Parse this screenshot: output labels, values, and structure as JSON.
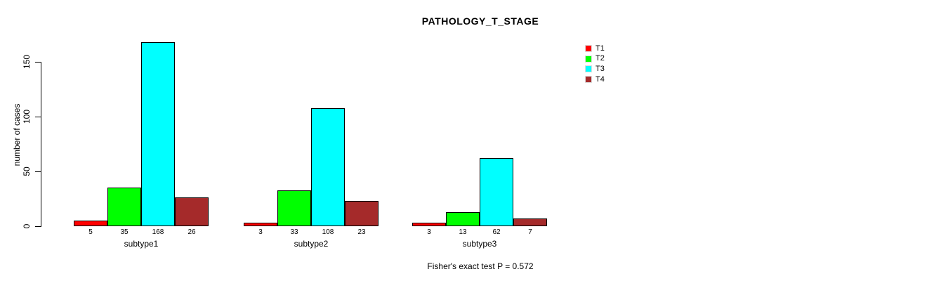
{
  "chart_data": {
    "type": "bar",
    "grouped": true,
    "title": "PATHOLOGY_T_STAGE",
    "ylabel": "number of cases",
    "xlabel": "",
    "categories": [
      "subtype1",
      "subtype2",
      "subtype3"
    ],
    "series": [
      {
        "name": "T1",
        "color": "#ff0000",
        "values": [
          5,
          3,
          3
        ]
      },
      {
        "name": "T2",
        "color": "#00ff00",
        "values": [
          35,
          33,
          13
        ]
      },
      {
        "name": "T3",
        "color": "#00ffff",
        "values": [
          168,
          108,
          62
        ]
      },
      {
        "name": "T4",
        "color": "#a52a2a",
        "values": [
          26,
          23,
          7
        ]
      }
    ],
    "yticks": [
      0,
      50,
      100,
      150
    ],
    "ylim": [
      0,
      175
    ],
    "bar_value_labels_shown": true,
    "legend_position": "top-right",
    "grid": false,
    "axis_color": "#000000",
    "bar_border_color": "#000000",
    "annotation": "Fisher's exact test P = 0.572"
  }
}
